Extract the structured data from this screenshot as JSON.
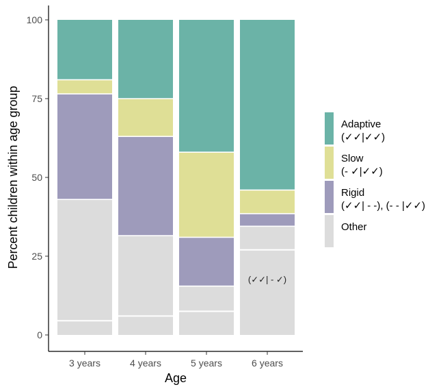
{
  "chart_data": {
    "type": "bar",
    "stacked": true,
    "xlabel": "Age",
    "ylabel": "Percent children within age group",
    "ylim": [
      0,
      100
    ],
    "yticks": [
      0,
      25,
      50,
      75,
      100
    ],
    "categories": [
      "3 years",
      "4 years",
      "5 years",
      "6 years"
    ],
    "series": [
      {
        "name": "Other",
        "values": [
          43,
          31.5,
          15.5,
          34.5
        ],
        "color": "#dcdcdc"
      },
      {
        "name": "Rigid",
        "values": [
          33.5,
          31.5,
          15.5,
          4
        ],
        "color": "#9e9bbb"
      },
      {
        "name": "Slow",
        "values": [
          4.5,
          12,
          27,
          7.5
        ],
        "color": "#dfdf96"
      },
      {
        "name": "Adaptive",
        "values": [
          19,
          25,
          42,
          54
        ],
        "color": "#6bb3a7"
      }
    ],
    "inner_dividers": [
      4.5,
      6,
      7.5,
      27
    ],
    "legend": {
      "placement": "right",
      "entries": [
        {
          "line1": "Adaptive",
          "line2": "(✓✓|✓✓)",
          "color": "#6bb3a7"
        },
        {
          "line1": "Slow",
          "line2": "(- ✓|✓✓)",
          "color": "#dfdf96"
        },
        {
          "line1": "Rigid",
          "line2": "(✓✓| - -), (- - |✓✓)",
          "color": "#9e9bbb"
        },
        {
          "line1": "Other",
          "line2": "",
          "color": "#dcdcdc"
        }
      ]
    },
    "annotations": [
      {
        "text": "(✓✓| - ✓)",
        "category": "6 years",
        "y": 17.5
      }
    ],
    "grid": false
  }
}
